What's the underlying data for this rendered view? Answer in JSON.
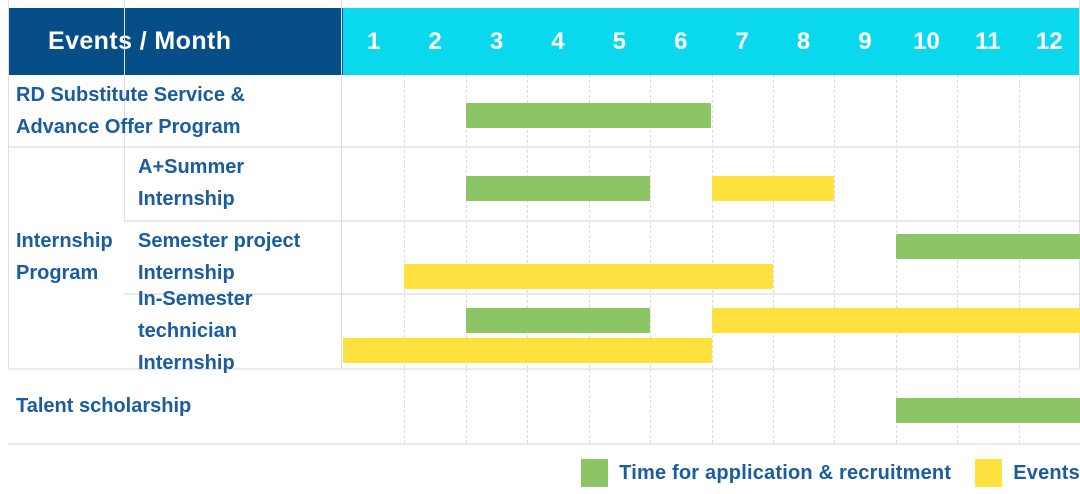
{
  "header": {
    "title": "Events / Month"
  },
  "chart_data": {
    "type": "bar",
    "subtype": "gantt",
    "title": "Events / Month",
    "x_label": "Month",
    "x_ticks": [
      "1",
      "2",
      "3",
      "4",
      "5",
      "6",
      "7",
      "8",
      "9",
      "10",
      "11",
      "12"
    ],
    "x_range": [
      1,
      12
    ],
    "grid": true,
    "group": {
      "label": "Internship\nProgram",
      "from_row": 1,
      "to_row": 3
    },
    "rows": [
      {
        "label": "RD Substitute Service &\nAdvance Offer Program",
        "in_group": false,
        "lines": [
          [
            {
              "kind": "application",
              "start_month": 3,
              "end_month": 6
            }
          ]
        ]
      },
      {
        "label": "A+Summer\nInternship",
        "in_group": true,
        "lines": [
          [
            {
              "kind": "application",
              "start_month": 3,
              "end_month": 5
            },
            {
              "kind": "event",
              "start_month": 7,
              "end_month": 8
            }
          ]
        ]
      },
      {
        "label": "Semester project\nInternship",
        "in_group": true,
        "lines": [
          [
            {
              "kind": "application",
              "start_month": 10,
              "end_month": 12
            }
          ],
          [
            {
              "kind": "event",
              "start_month": 2,
              "end_month": 7
            }
          ]
        ]
      },
      {
        "label": "In-Semester\ntechnician Internship",
        "in_group": true,
        "lines": [
          [
            {
              "kind": "application",
              "start_month": 3,
              "end_month": 5
            },
            {
              "kind": "event",
              "start_month": 7,
              "end_month": 12
            }
          ],
          [
            {
              "kind": "event",
              "start_month": 1,
              "end_month": 6
            }
          ]
        ]
      },
      {
        "label": "Talent scholarship",
        "in_group": false,
        "lines": [
          [
            {
              "kind": "application",
              "start_month": 10,
              "end_month": 12
            }
          ]
        ]
      }
    ],
    "legend": [
      {
        "kind": "application",
        "label": "Time for application & recruitment"
      },
      {
        "kind": "event",
        "label": "Events"
      }
    ],
    "legend_position": "bottom-right"
  },
  "colors": {
    "header_bg": "#054E87",
    "months_bg": "#0AD8EC",
    "header_text": "#FFFFFF",
    "label_text": "#1A5CA0",
    "application": "#8BC566",
    "event": "#FFE23E"
  }
}
